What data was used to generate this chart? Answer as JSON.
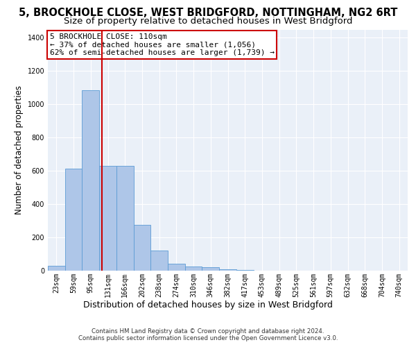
{
  "title": "5, BROCKHOLE CLOSE, WEST BRIDGFORD, NOTTINGHAM, NG2 6RT",
  "subtitle": "Size of property relative to detached houses in West Bridgford",
  "xlabel": "Distribution of detached houses by size in West Bridgford",
  "ylabel": "Number of detached properties",
  "bar_color": "#aec6e8",
  "bar_edge_color": "#5b9bd5",
  "background_color": "#eaf0f8",
  "grid_color": "#ffffff",
  "categories": [
    "23sqm",
    "59sqm",
    "95sqm",
    "131sqm",
    "166sqm",
    "202sqm",
    "238sqm",
    "274sqm",
    "310sqm",
    "346sqm",
    "382sqm",
    "417sqm",
    "453sqm",
    "489sqm",
    "525sqm",
    "561sqm",
    "597sqm",
    "632sqm",
    "668sqm",
    "704sqm",
    "740sqm"
  ],
  "values": [
    30,
    615,
    1085,
    630,
    630,
    275,
    120,
    40,
    25,
    20,
    10,
    5,
    2,
    1,
    1,
    0,
    0,
    0,
    0,
    0,
    0
  ],
  "ylim": [
    0,
    1450
  ],
  "yticks": [
    0,
    200,
    400,
    600,
    800,
    1000,
    1200,
    1400
  ],
  "red_line_x": 2.67,
  "annotation_text": "5 BROCKHOLE CLOSE: 110sqm\n← 37% of detached houses are smaller (1,056)\n62% of semi-detached houses are larger (1,739) →",
  "annotation_box_color": "#ffffff",
  "annotation_border_color": "#cc0000",
  "footer_line1": "Contains HM Land Registry data © Crown copyright and database right 2024.",
  "footer_line2": "Contains public sector information licensed under the Open Government Licence v3.0.",
  "title_fontsize": 10.5,
  "subtitle_fontsize": 9.5,
  "tick_fontsize": 7,
  "ylabel_fontsize": 8.5,
  "xlabel_fontsize": 9,
  "annotation_fontsize": 8,
  "footer_fontsize": 6.2
}
